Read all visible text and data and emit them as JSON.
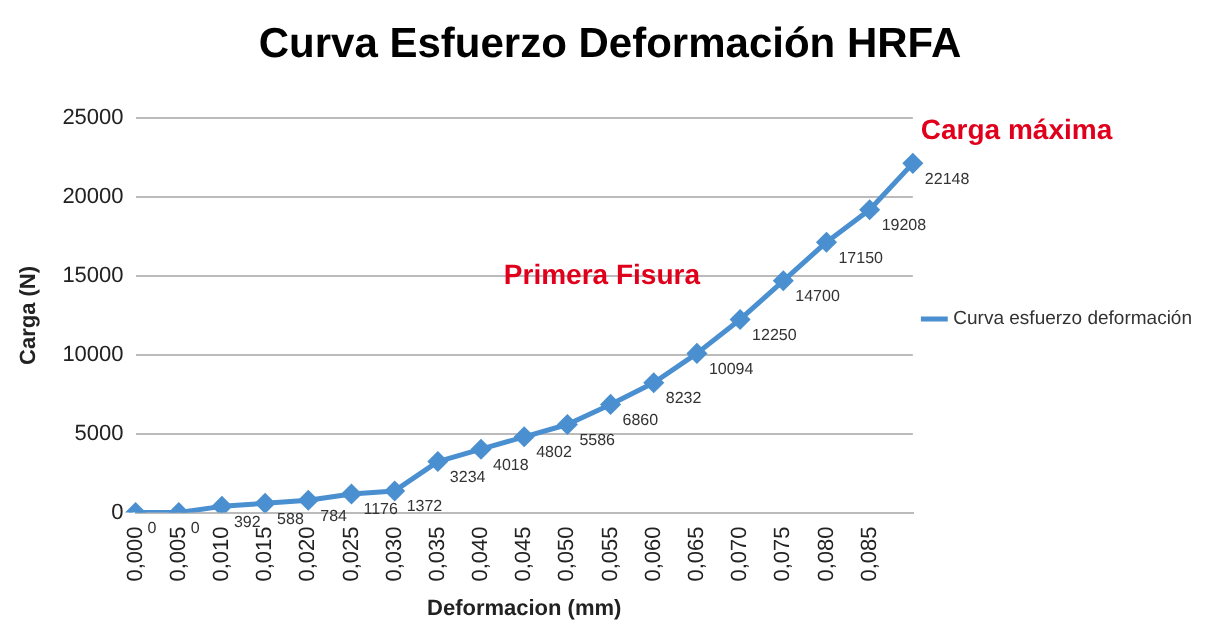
{
  "chart_data": {
    "type": "line",
    "title": "Curva Esfuerzo Deformación HRFA",
    "xlabel": "Deformacion (mm)",
    "ylabel": "Carga (N)",
    "categories": [
      "0,000",
      "0,005",
      "0,010",
      "0,015",
      "0,020",
      "0,025",
      "0,030",
      "0,035",
      "0,040",
      "0,045",
      "0,050",
      "0,055",
      "0,060",
      "0,065",
      "0,070",
      "0,075",
      "0,080",
      "0,085",
      null
    ],
    "series": [
      {
        "name": "Curva esfuerzo deformación",
        "color": "#4a8fd0",
        "values": [
          0,
          0,
          392,
          588,
          784,
          1176,
          1372,
          3234,
          4018,
          4802,
          5586,
          6860,
          8232,
          10094,
          12250,
          14700,
          17150,
          19208,
          22148
        ]
      }
    ],
    "ylim": [
      0,
      25000
    ],
    "yticks": [
      0,
      5000,
      10000,
      15000,
      20000,
      25000
    ],
    "grid": "y",
    "legend": "right",
    "marker": "diamond",
    "line_style": "solid",
    "data_labels": true,
    "annotations": [
      "Primera Fisura",
      "Carga máxima"
    ]
  }
}
